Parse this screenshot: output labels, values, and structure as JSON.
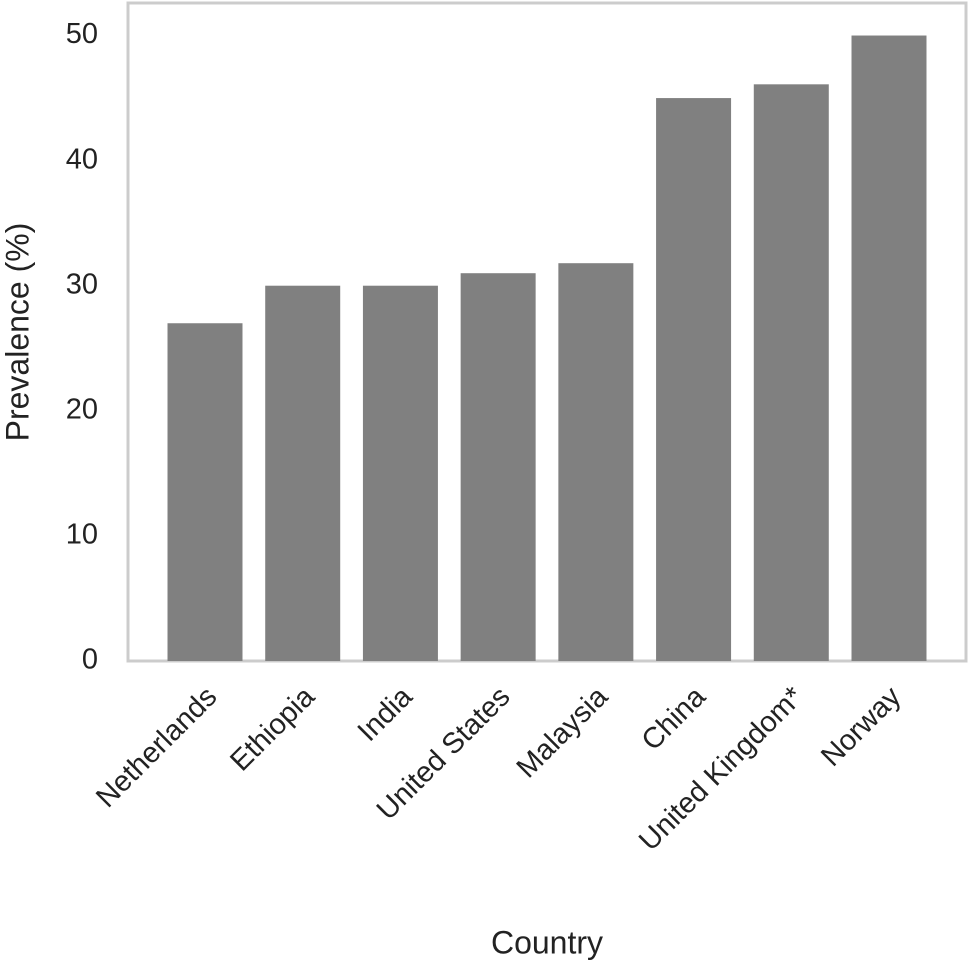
{
  "chart_data": {
    "type": "bar",
    "x_label": "Country",
    "y_label": "Prevalence (%)",
    "categories": [
      "Netherlands",
      "Ethiopia",
      "India",
      "United States",
      "Malaysia",
      "China",
      "United Kingdom*",
      "Norway"
    ],
    "values": [
      27,
      30,
      30,
      31,
      31.8,
      45,
      46.1,
      50
    ],
    "color": "#808080",
    "ylim": [
      0,
      52.6
    ],
    "yticks": [
      0,
      10,
      20,
      30,
      40,
      50
    ],
    "grid": false
  }
}
